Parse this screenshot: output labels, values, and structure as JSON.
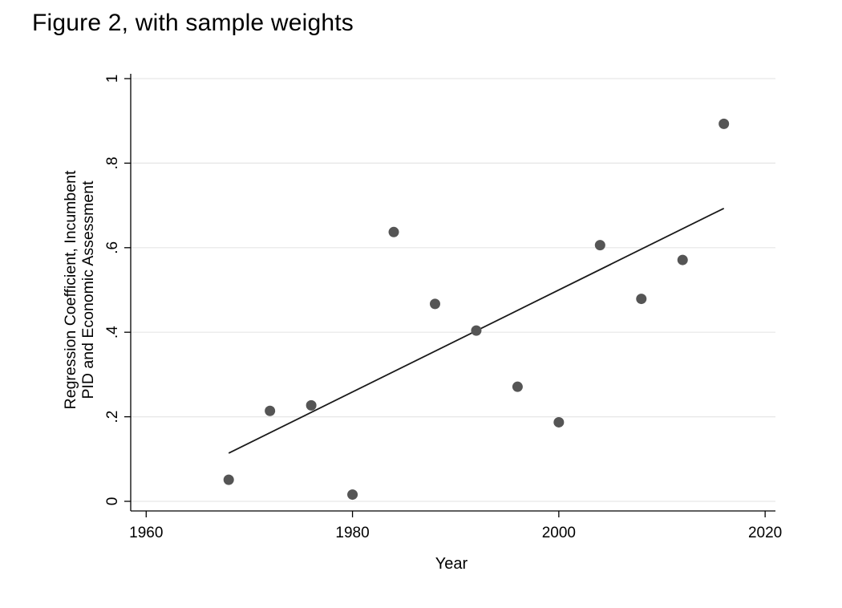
{
  "figure_title": "Figure 2, with sample weights",
  "chart_data": {
    "type": "scatter",
    "xlabel": "Year",
    "ylabel_lines": [
      "Regression Coefficient, Incumbent",
      "PID and Economic Assessment"
    ],
    "xlim": [
      1958.5,
      2021
    ],
    "ylim": [
      0,
      1
    ],
    "x_ticks": [
      1960,
      1980,
      2000,
      2020
    ],
    "x_tick_labels": [
      "1960",
      "1980",
      "2000",
      "2020"
    ],
    "y_ticks": [
      0,
      0.2,
      0.4,
      0.6,
      0.8,
      1
    ],
    "y_tick_labels": [
      "0",
      ".2",
      ".4",
      ".6",
      ".8",
      "1"
    ],
    "grid": true,
    "series": [
      {
        "x": [
          1968,
          1972,
          1976,
          1980,
          1984,
          1988,
          1992,
          1996,
          2000,
          2004,
          2008,
          2012,
          2016
        ],
        "y": [
          0.051,
          0.214,
          0.227,
          0.016,
          0.637,
          0.467,
          0.404,
          0.271,
          0.187,
          0.606,
          0.479,
          0.571,
          0.893
        ],
        "color": "#555555"
      }
    ],
    "fit_line": {
      "x": [
        1968,
        2016
      ],
      "y": [
        0.114,
        0.693
      ],
      "color": "#1a1a1a"
    }
  }
}
